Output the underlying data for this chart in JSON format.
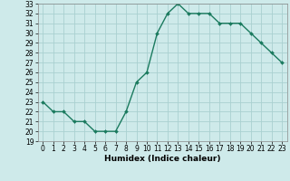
{
  "x": [
    0,
    1,
    2,
    3,
    4,
    5,
    6,
    7,
    8,
    9,
    10,
    11,
    12,
    13,
    14,
    15,
    16,
    17,
    18,
    19,
    20,
    21,
    22,
    23
  ],
  "y": [
    23,
    22,
    22,
    21,
    21,
    20,
    20,
    20,
    22,
    25,
    26,
    30,
    32,
    33,
    32,
    32,
    32,
    31,
    31,
    31,
    30,
    29,
    28,
    27
  ],
  "xlabel": "Humidex (Indice chaleur)",
  "ylim": [
    19,
    33
  ],
  "yticks": [
    19,
    20,
    21,
    22,
    23,
    24,
    25,
    26,
    27,
    28,
    29,
    30,
    31,
    32,
    33
  ],
  "xticks": [
    0,
    1,
    2,
    3,
    4,
    5,
    6,
    7,
    8,
    9,
    10,
    11,
    12,
    13,
    14,
    15,
    16,
    17,
    18,
    19,
    20,
    21,
    22,
    23
  ],
  "line_color": "#1a7a5e",
  "marker": "D",
  "marker_size": 2,
  "bg_color": "#ceeaea",
  "grid_color": "#aad0d0",
  "line_width": 1.0,
  "tick_fontsize": 5.5,
  "xlabel_fontsize": 6.5
}
